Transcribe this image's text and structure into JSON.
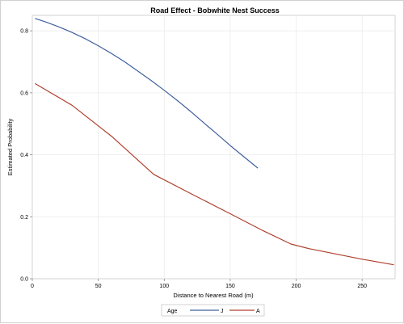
{
  "chart_data": {
    "type": "line",
    "title": "Road Effect - Bobwhite Nest Success",
    "xlabel": "Distance to Nearest Road (m)",
    "ylabel": "Estimated Probability",
    "xlim": [
      0,
      275
    ],
    "ylim": [
      0,
      0.85
    ],
    "xticks": [
      0,
      50,
      100,
      150,
      200,
      250
    ],
    "yticks": [
      0.0,
      0.2,
      0.4,
      0.6,
      0.8
    ],
    "xtick_labels": [
      "0",
      "50",
      "100",
      "150",
      "200",
      "250"
    ],
    "ytick_labels": [
      "0.0",
      "0.2",
      "0.4",
      "0.6",
      "0.8"
    ],
    "grid": true,
    "legend": {
      "title": "Age",
      "position": "bottom-center"
    },
    "series": [
      {
        "name": "J",
        "color": "#41609e",
        "x": [
          2,
          10,
          20,
          30,
          40,
          50,
          60,
          70,
          80,
          90,
          100,
          110,
          120,
          130,
          140,
          150,
          160,
          171
        ],
        "y": [
          0.84,
          0.829,
          0.813,
          0.795,
          0.775,
          0.752,
          0.727,
          0.7,
          0.67,
          0.64,
          0.608,
          0.575,
          0.54,
          0.503,
          0.467,
          0.43,
          0.395,
          0.357
        ]
      },
      {
        "name": "A",
        "color": "#b0402e",
        "x": [
          2,
          30,
          60,
          92,
          120,
          150,
          175,
          196,
          210,
          230,
          250,
          274
        ],
        "y": [
          0.63,
          0.56,
          0.46,
          0.337,
          0.275,
          0.21,
          0.155,
          0.112,
          0.097,
          0.08,
          0.063,
          0.045
        ]
      }
    ]
  }
}
